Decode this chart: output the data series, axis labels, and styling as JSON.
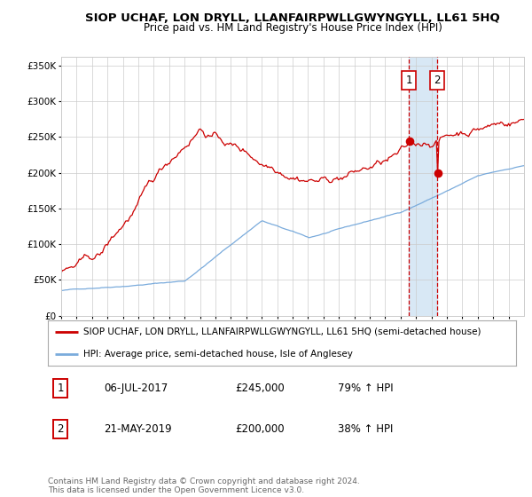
{
  "title": "SIOP UCHAF, LON DRYLL, LLANFAIRPWLLGWYNGYLL, LL61 5HQ",
  "subtitle": "Price paid vs. HM Land Registry's House Price Index (HPI)",
  "legend_red": "SIOP UCHAF, LON DRYLL, LLANFAIRPWLLGWYNGYLL, LL61 5HQ (semi-detached house)",
  "legend_blue": "HPI: Average price, semi-detached house, Isle of Anglesey",
  "annotation1_label": "1",
  "annotation1_date": "06-JUL-2017",
  "annotation1_price": "£245,000",
  "annotation1_hpi": "79% ↑ HPI",
  "annotation2_label": "2",
  "annotation2_date": "21-MAY-2019",
  "annotation2_price": "£200,000",
  "annotation2_hpi": "38% ↑ HPI",
  "footer": "Contains HM Land Registry data © Crown copyright and database right 2024.\nThis data is licensed under the Open Government Licence v3.0.",
  "red_color": "#cc0000",
  "blue_color": "#7aabdc",
  "background_color": "#ffffff",
  "grid_color": "#cccccc",
  "highlight_color": "#d8e8f5",
  "annotation_box_color": "#cc0000",
  "ylim": [
    0,
    362000
  ],
  "yticks": [
    0,
    50000,
    100000,
    150000,
    200000,
    250000,
    300000,
    350000
  ],
  "start_year": 1995,
  "end_year": 2024,
  "ann1_year": 2017.54,
  "ann2_year": 2019.38,
  "ann1_price": 245000,
  "ann2_price": 200000
}
